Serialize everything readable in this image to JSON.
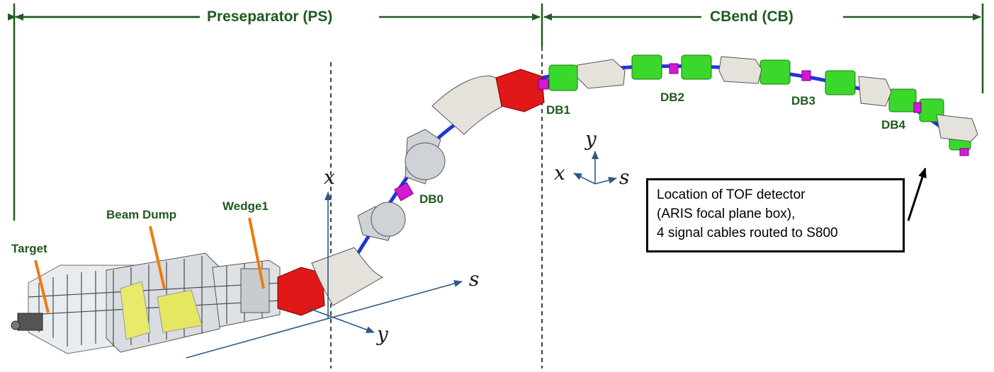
{
  "regions": {
    "preseparator": "Preseparator (PS)",
    "cbend": "CBend (CB)"
  },
  "labels": {
    "target": "Target",
    "beam_dump": "Beam Dump",
    "wedge1": "Wedge1",
    "db0": "DB0",
    "db1": "DB1",
    "db2": "DB2",
    "db3": "DB3",
    "db4": "DB4"
  },
  "axes_ps": {
    "x": "x",
    "y": "y",
    "s": "s"
  },
  "axes_cb": {
    "x": "x",
    "y": "y",
    "s": "s"
  },
  "callout": {
    "line1": "Location of TOF detector",
    "line2": "(ARIS focal plane box),",
    "line3": "4 signal cables routed to S800"
  },
  "colors": {
    "title_green": "#1f5a1f",
    "axis_blue": "#2c5a85",
    "dipole_red": "#e01818",
    "quad_green": "#3ad82a",
    "steerer_magenta": "#d41ad4",
    "beam_pipe_blue": "#2233dd",
    "leader_orange": "#f07a10"
  }
}
